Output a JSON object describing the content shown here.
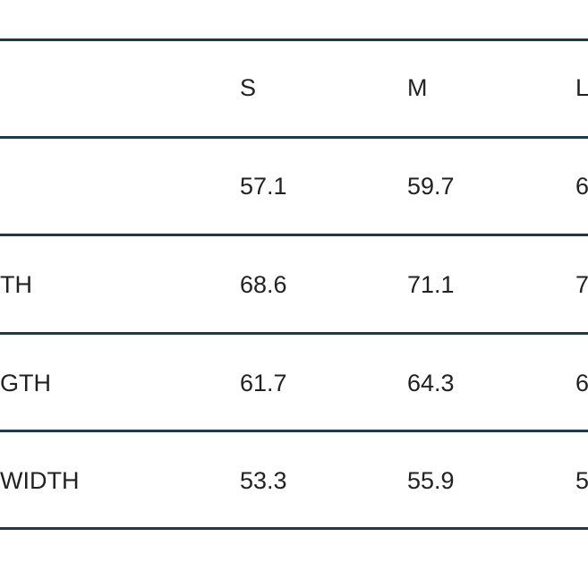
{
  "table": {
    "columns": [
      "S",
      "M",
      "L"
    ],
    "rows": [
      {
        "cells": [
          "57.1",
          "59.7",
          "6"
        ]
      },
      {
        "label": "TH",
        "cells": [
          "68.6",
          "71.1",
          "7"
        ]
      },
      {
        "label": "GTH",
        "cells": [
          "61.7",
          "64.3",
          "6"
        ]
      },
      {
        "label": "WIDTH",
        "cells": [
          "53.3",
          "55.9",
          "5"
        ]
      }
    ]
  }
}
